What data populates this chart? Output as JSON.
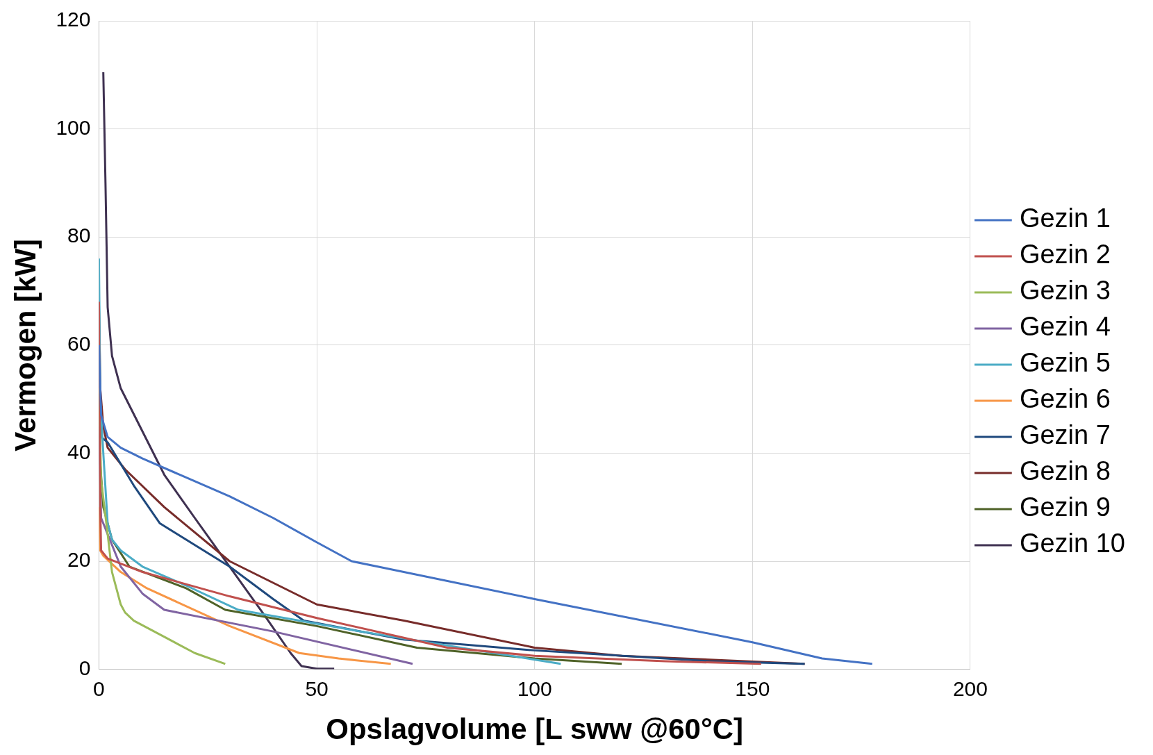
{
  "chart_data": {
    "type": "line",
    "xlabel": "Opslagvolume [L sww @60°C]",
    "ylabel": "Vermogen [kW]",
    "xlim": [
      0,
      200
    ],
    "xticks": [
      0,
      50,
      100,
      150,
      200
    ],
    "ylim": [
      0,
      120
    ],
    "yticks": [
      0,
      20,
      40,
      60,
      80,
      100,
      120
    ],
    "grid": true,
    "legend": "right",
    "marker": "none",
    "line_style": "solid",
    "series": [
      {
        "name": "Gezin 1",
        "color": "#4472c4",
        "x": [
          0,
          0.5,
          2,
          5,
          10,
          20,
          30,
          40,
          50,
          58,
          64,
          100,
          150,
          166,
          177.5
        ],
        "values": [
          60,
          47,
          43,
          41,
          39,
          35.5,
          32,
          28,
          23.5,
          20,
          19,
          13,
          5,
          2,
          1
        ]
      },
      {
        "name": "Gezin 2",
        "color": "#c0504d",
        "x": [
          0,
          0.3,
          0.5,
          2,
          10,
          30,
          50,
          80,
          100,
          130,
          152
        ],
        "values": [
          68,
          30,
          22,
          20.5,
          18,
          13.5,
          9.5,
          4,
          2.5,
          1.5,
          1
        ]
      },
      {
        "name": "Gezin 3",
        "color": "#9bbb59",
        "x": [
          0,
          0.5,
          2,
          3,
          5,
          6,
          8,
          15,
          22,
          29
        ],
        "values": [
          52,
          35,
          25,
          18,
          12,
          10.5,
          9,
          6,
          3,
          1
        ]
      },
      {
        "name": "Gezin 4",
        "color": "#8064a2",
        "x": [
          0,
          0.5,
          2,
          5,
          10,
          15,
          40,
          72
        ],
        "values": [
          45,
          28,
          25,
          19,
          14,
          11,
          7,
          1
        ]
      },
      {
        "name": "Gezin 5",
        "color": "#4bacc6",
        "x": [
          0,
          0.3,
          1,
          2,
          3,
          5,
          10,
          20,
          32,
          60,
          106
        ],
        "values": [
          76,
          50,
          40,
          27,
          24,
          22,
          19,
          15.5,
          11,
          7,
          1
        ]
      },
      {
        "name": "Gezin 6",
        "color": "#f79646",
        "x": [
          0,
          0.3,
          1,
          5,
          11,
          30,
          46,
          55,
          67
        ],
        "values": [
          30,
          22,
          21,
          18,
          15,
          8,
          3,
          2,
          1
        ]
      },
      {
        "name": "Gezin 7",
        "color": "#1f497d",
        "x": [
          0,
          0.2,
          0.5,
          2,
          8,
          14,
          30,
          40,
          47,
          70,
          100,
          140,
          162
        ],
        "values": [
          60,
          50,
          43,
          42,
          34,
          27,
          19,
          13,
          9,
          5.5,
          3.5,
          1.5,
          1
        ]
      },
      {
        "name": "Gezin 8",
        "color": "#772c2a",
        "x": [
          0,
          0.3,
          1,
          2,
          6,
          15,
          30,
          50,
          70,
          100,
          120,
          162
        ],
        "values": [
          68,
          52,
          45,
          41,
          37,
          30,
          20,
          12,
          9,
          4,
          2.5,
          1
        ]
      },
      {
        "name": "Gezin 9",
        "color": "#4f6228",
        "x": [
          0,
          0.3,
          1,
          3,
          7,
          20,
          29,
          50,
          73,
          100,
          120
        ],
        "values": [
          51,
          38,
          30,
          24,
          19,
          15,
          11,
          8,
          4,
          2,
          1
        ]
      },
      {
        "name": "Gezin 10",
        "color": "#3f3151",
        "x": [
          1,
          1.5,
          2,
          3,
          5,
          10,
          15,
          22,
          30,
          38,
          44,
          46.5,
          50,
          54
        ],
        "values": [
          110.5,
          90,
          67,
          58,
          52,
          44,
          36,
          28,
          19,
          10,
          3,
          0.6,
          0.1,
          0.1
        ]
      }
    ]
  }
}
